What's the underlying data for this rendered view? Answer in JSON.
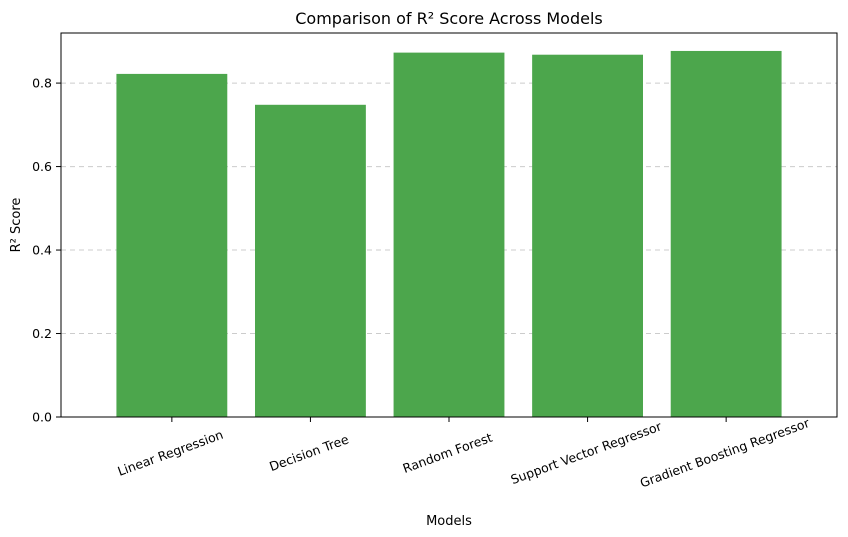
{
  "chart_data": {
    "type": "bar",
    "title": "Comparison of R² Score Across Models",
    "xlabel": "Models",
    "ylabel": "R² Score",
    "categories": [
      "Linear Regression",
      "Decision Tree",
      "Random Forest",
      "Support Vector Regressor",
      "Gradient Boosting Regressor"
    ],
    "values": [
      0.822,
      0.748,
      0.873,
      0.868,
      0.877
    ],
    "ylim": [
      0,
      0.92
    ],
    "yticks": [
      0.0,
      0.2,
      0.4,
      0.6,
      0.8
    ],
    "ytick_labels": [
      "0.0",
      "0.2",
      "0.4",
      "0.6",
      "0.8"
    ],
    "grid": "y, dashed",
    "bar_color": "#4ca64c",
    "xtick_rotation": "20°"
  }
}
